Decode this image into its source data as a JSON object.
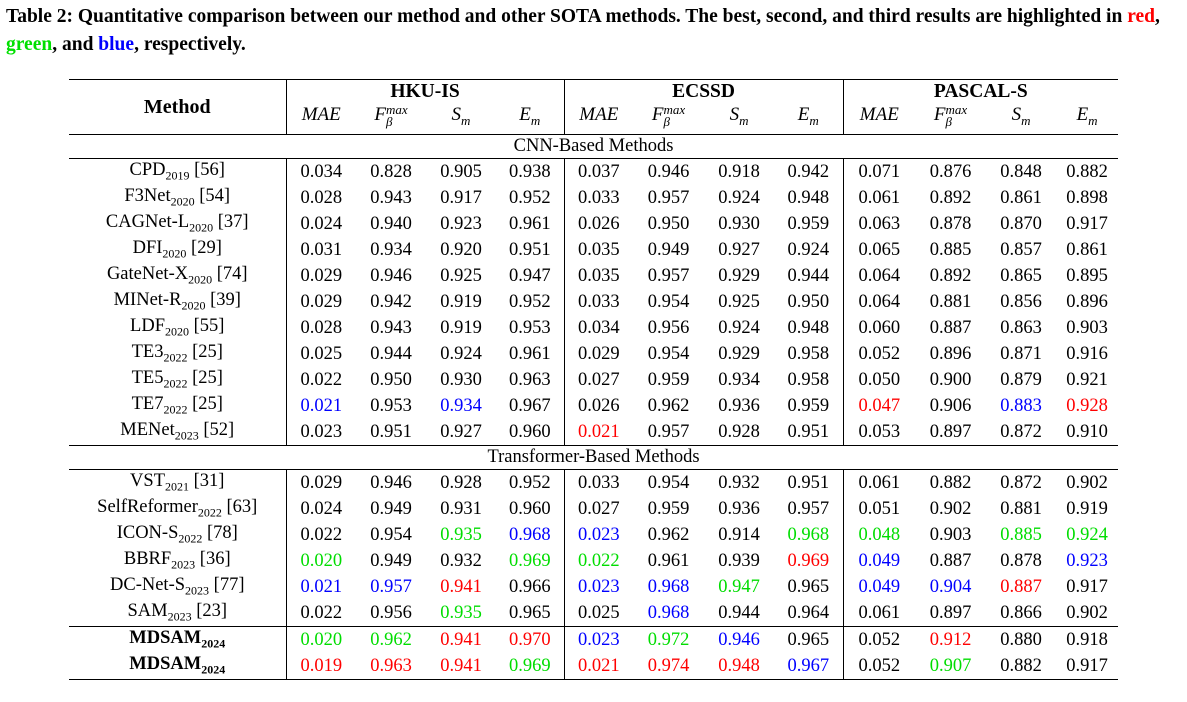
{
  "caption": {
    "lead": "Table 2: Quantitative comparison between our method and other SOTA methods. The best, second, and third results are highlighted in ",
    "red": "red",
    "sep1": ", ",
    "green": "green",
    "sep2": ", and ",
    "blue": "blue",
    "tail": ", respectively."
  },
  "header": {
    "method": "Method",
    "groups": [
      "HKU-IS",
      "ECSSD",
      "PASCAL-S"
    ],
    "metrics": [
      "MAE",
      "F",
      "max",
      "β",
      "S",
      "m",
      "E",
      "m"
    ]
  },
  "sections": {
    "cnn": "CNN-Based Methods",
    "transformer": "Transformer-Based Methods"
  },
  "rows": [
    {
      "name": "CPD",
      "year": "2019",
      "ref": " [56]",
      "bold": false,
      "vals": [
        "0.034",
        "0.828",
        "0.905",
        "0.938",
        "0.037",
        "0.946",
        "0.918",
        "0.942",
        "0.071",
        "0.876",
        "0.848",
        "0.882"
      ],
      "col": [
        "",
        "",
        "",
        "",
        "",
        "",
        "",
        "",
        "",
        "",
        "",
        ""
      ]
    },
    {
      "name": "F3Net",
      "year": "2020",
      "ref": " [54]",
      "bold": false,
      "vals": [
        "0.028",
        "0.943",
        "0.917",
        "0.952",
        "0.033",
        "0.957",
        "0.924",
        "0.948",
        "0.061",
        "0.892",
        "0.861",
        "0.898"
      ],
      "col": [
        "",
        "",
        "",
        "",
        "",
        "",
        "",
        "",
        "",
        "",
        "",
        ""
      ]
    },
    {
      "name": "CAGNet-L",
      "year": "2020",
      "ref": " [37]",
      "bold": false,
      "vals": [
        "0.024",
        "0.940",
        "0.923",
        "0.961",
        "0.026",
        "0.950",
        "0.930",
        "0.959",
        "0.063",
        "0.878",
        "0.870",
        "0.917"
      ],
      "col": [
        "",
        "",
        "",
        "",
        "",
        "",
        "",
        "",
        "",
        "",
        "",
        ""
      ]
    },
    {
      "name": "DFI",
      "year": "2020",
      "ref": " [29]",
      "bold": false,
      "vals": [
        "0.031",
        "0.934",
        "0.920",
        "0.951",
        "0.035",
        "0.949",
        "0.927",
        "0.924",
        "0.065",
        "0.885",
        "0.857",
        "0.861"
      ],
      "col": [
        "",
        "",
        "",
        "",
        "",
        "",
        "",
        "",
        "",
        "",
        "",
        ""
      ]
    },
    {
      "name": "GateNet-X",
      "year": "2020",
      "ref": " [74]",
      "bold": false,
      "vals": [
        "0.029",
        "0.946",
        "0.925",
        "0.947",
        "0.035",
        "0.957",
        "0.929",
        "0.944",
        "0.064",
        "0.892",
        "0.865",
        "0.895"
      ],
      "col": [
        "",
        "",
        "",
        "",
        "",
        "",
        "",
        "",
        "",
        "",
        "",
        ""
      ]
    },
    {
      "name": "MINet-R",
      "year": "2020",
      "ref": " [39]",
      "bold": false,
      "vals": [
        "0.029",
        "0.942",
        "0.919",
        "0.952",
        "0.033",
        "0.954",
        "0.925",
        "0.950",
        "0.064",
        "0.881",
        "0.856",
        "0.896"
      ],
      "col": [
        "",
        "",
        "",
        "",
        "",
        "",
        "",
        "",
        "",
        "",
        "",
        ""
      ]
    },
    {
      "name": "LDF",
      "year": "2020",
      "ref": " [55]",
      "bold": false,
      "vals": [
        "0.028",
        "0.943",
        "0.919",
        "0.953",
        "0.034",
        "0.956",
        "0.924",
        "0.948",
        "0.060",
        "0.887",
        "0.863",
        "0.903"
      ],
      "col": [
        "",
        "",
        "",
        "",
        "",
        "",
        "",
        "",
        "",
        "",
        "",
        ""
      ]
    },
    {
      "name": "TE3",
      "year": "2022",
      "ref": " [25]",
      "bold": false,
      "vals": [
        "0.025",
        "0.944",
        "0.924",
        "0.961",
        "0.029",
        "0.954",
        "0.929",
        "0.958",
        "0.052",
        "0.896",
        "0.871",
        "0.916"
      ],
      "col": [
        "",
        "",
        "",
        "",
        "",
        "",
        "",
        "",
        "",
        "",
        "",
        ""
      ]
    },
    {
      "name": "TE5",
      "year": "2022",
      "ref": " [25]",
      "bold": false,
      "vals": [
        "0.022",
        "0.950",
        "0.930",
        "0.963",
        "0.027",
        "0.959",
        "0.934",
        "0.958",
        "0.050",
        "0.900",
        "0.879",
        "0.921"
      ],
      "col": [
        "",
        "",
        "",
        "",
        "",
        "",
        "",
        "",
        "",
        "",
        "",
        ""
      ]
    },
    {
      "name": "TE7",
      "year": "2022",
      "ref": " [25]",
      "bold": false,
      "vals": [
        "0.021",
        "0.953",
        "0.934",
        "0.967",
        "0.026",
        "0.962",
        "0.936",
        "0.959",
        "0.047",
        "0.906",
        "0.883",
        "0.928"
      ],
      "col": [
        "b",
        "",
        "b",
        "",
        "",
        "",
        "",
        "",
        "r",
        "",
        "b",
        "r"
      ]
    },
    {
      "name": "MENet",
      "year": "2023",
      "ref": " [52]",
      "bold": false,
      "vals": [
        "0.023",
        "0.951",
        "0.927",
        "0.960",
        "0.021",
        "0.957",
        "0.928",
        "0.951",
        "0.053",
        "0.897",
        "0.872",
        "0.910"
      ],
      "col": [
        "",
        "",
        "",
        "",
        "r",
        "",
        "",
        "",
        "",
        "",
        "",
        ""
      ]
    },
    {
      "name": "VST",
      "year": "2021",
      "ref": " [31]",
      "bold": false,
      "vals": [
        "0.029",
        "0.946",
        "0.928",
        "0.952",
        "0.033",
        "0.954",
        "0.932",
        "0.951",
        "0.061",
        "0.882",
        "0.872",
        "0.902"
      ],
      "col": [
        "",
        "",
        "",
        "",
        "",
        "",
        "",
        "",
        "",
        "",
        "",
        ""
      ]
    },
    {
      "name": "SelfReformer",
      "year": "2022",
      "ref": " [63]",
      "bold": false,
      "vals": [
        "0.024",
        "0.949",
        "0.931",
        "0.960",
        "0.027",
        "0.959",
        "0.936",
        "0.957",
        "0.051",
        "0.902",
        "0.881",
        "0.919"
      ],
      "col": [
        "",
        "",
        "",
        "",
        "",
        "",
        "",
        "",
        "",
        "",
        "",
        ""
      ]
    },
    {
      "name": "ICON-S",
      "year": "2022",
      "ref": " [78]",
      "bold": false,
      "vals": [
        "0.022",
        "0.954",
        "0.935",
        "0.968",
        "0.023",
        "0.962",
        "0.914",
        "0.968",
        "0.048",
        "0.903",
        "0.885",
        "0.924"
      ],
      "col": [
        "",
        "",
        "g",
        "b",
        "b",
        "",
        "",
        "g",
        "g",
        "",
        "g",
        "g"
      ]
    },
    {
      "name": "BBRF",
      "year": "2023",
      "ref": " [36]",
      "bold": false,
      "vals": [
        "0.020",
        "0.949",
        "0.932",
        "0.969",
        "0.022",
        "0.961",
        "0.939",
        "0.969",
        "0.049",
        "0.887",
        "0.878",
        "0.923"
      ],
      "col": [
        "g",
        "",
        "",
        "g",
        "g",
        "",
        "",
        "r",
        "b",
        "",
        "",
        "b"
      ]
    },
    {
      "name": "DC-Net-S",
      "year": "2023",
      "ref": " [77]",
      "bold": false,
      "vals": [
        "0.021",
        "0.957",
        "0.941",
        "0.966",
        "0.023",
        "0.968",
        "0.947",
        "0.965",
        "0.049",
        "0.904",
        "0.887",
        "0.917"
      ],
      "col": [
        "b",
        "b",
        "r",
        "",
        "b",
        "b",
        "g",
        "",
        "b",
        "b",
        "r",
        ""
      ]
    },
    {
      "name": "SAM",
      "year": "2023",
      "ref": " [23]",
      "bold": false,
      "vals": [
        "0.022",
        "0.956",
        "0.935",
        "0.965",
        "0.025",
        "0.968",
        "0.944",
        "0.964",
        "0.061",
        "0.897",
        "0.866",
        "0.902"
      ],
      "col": [
        "",
        "",
        "g",
        "",
        "",
        "b",
        "",
        "",
        "",
        "",
        "",
        ""
      ]
    },
    {
      "name": "MDSAM",
      "year": "2024",
      "ref": "",
      "bold": true,
      "vals": [
        "0.020",
        "0.962",
        "0.941",
        "0.970",
        "0.023",
        "0.972",
        "0.946",
        "0.965",
        "0.052",
        "0.912",
        "0.880",
        "0.918"
      ],
      "col": [
        "g",
        "g",
        "r",
        "r",
        "b",
        "g",
        "b",
        "",
        "",
        "r",
        "",
        ""
      ]
    },
    {
      "name": "MDSAM",
      "year": "2024",
      "ref": "",
      "bold": true,
      "vals": [
        "0.019",
        "0.963",
        "0.941",
        "0.969",
        "0.021",
        "0.974",
        "0.948",
        "0.967",
        "0.052",
        "0.907",
        "0.882",
        "0.917"
      ],
      "col": [
        "r",
        "r",
        "r",
        "g",
        "r",
        "r",
        "r",
        "b",
        "",
        "g",
        "",
        ""
      ]
    }
  ],
  "colors": {
    "red": "#ff0000",
    "green": "#00dd00",
    "blue": "#0000ff"
  }
}
